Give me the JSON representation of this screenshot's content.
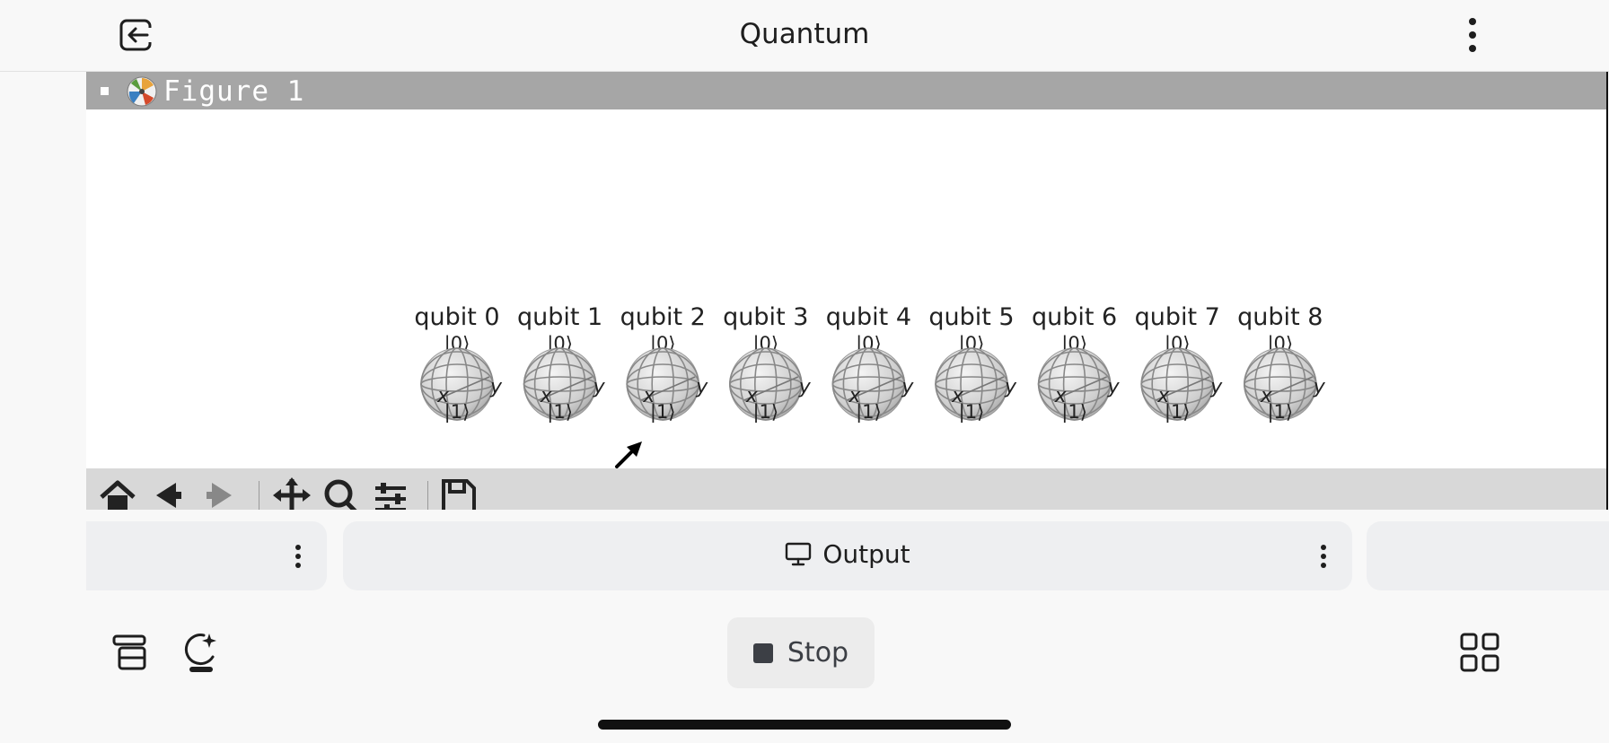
{
  "header": {
    "title": "Quantum",
    "exit_icon": "exit-icon",
    "more_icon": "more-vertical-icon"
  },
  "figure": {
    "window_title": "Figure 1",
    "logo_icon": "matplotlib-logo-icon",
    "qubits": [
      {
        "label": "qubit 0",
        "top_state": "|0⟩",
        "bottom_state": "|1⟩",
        "x_axis": "x",
        "y_axis": "y"
      },
      {
        "label": "qubit 1",
        "top_state": "|0⟩",
        "bottom_state": "|1⟩",
        "x_axis": "x",
        "y_axis": "y"
      },
      {
        "label": "qubit 2",
        "top_state": "|0⟩",
        "bottom_state": "|1⟩",
        "x_axis": "x",
        "y_axis": "y"
      },
      {
        "label": "qubit 3",
        "top_state": "|0⟩",
        "bottom_state": "|1⟩",
        "x_axis": "x",
        "y_axis": "y"
      },
      {
        "label": "qubit 4",
        "top_state": "|0⟩",
        "bottom_state": "|1⟩",
        "x_axis": "x",
        "y_axis": "y"
      },
      {
        "label": "qubit 5",
        "top_state": "|0⟩",
        "bottom_state": "|1⟩",
        "x_axis": "x",
        "y_axis": "y"
      },
      {
        "label": "qubit 6",
        "top_state": "|0⟩",
        "bottom_state": "|1⟩",
        "x_axis": "x",
        "y_axis": "y"
      },
      {
        "label": "qubit 7",
        "top_state": "|0⟩",
        "bottom_state": "|1⟩",
        "x_axis": "x",
        "y_axis": "y"
      },
      {
        "label": "qubit 8",
        "top_state": "|0⟩",
        "bottom_state": "|1⟩",
        "x_axis": "x",
        "y_axis": "y"
      }
    ],
    "toolbar": [
      "home-icon",
      "back-arrow-icon",
      "forward-arrow-icon",
      "pan-icon",
      "zoom-icon",
      "configure-subplots-icon",
      "save-icon"
    ]
  },
  "tabs": {
    "output_label": "Output",
    "output_icon": "monitor-icon"
  },
  "bottom_bar": {
    "stop_label": "Stop",
    "left_icons": [
      "stack-icon",
      "ai-assistant-icon"
    ],
    "right_icon": "grid-icon"
  },
  "colors": {
    "background": "#f8f8f8",
    "titlebar": "#a6a6a6",
    "toolbar": "#d8d8d8",
    "pill": "#eeeff1",
    "stop_icon": "#3c3f45"
  }
}
